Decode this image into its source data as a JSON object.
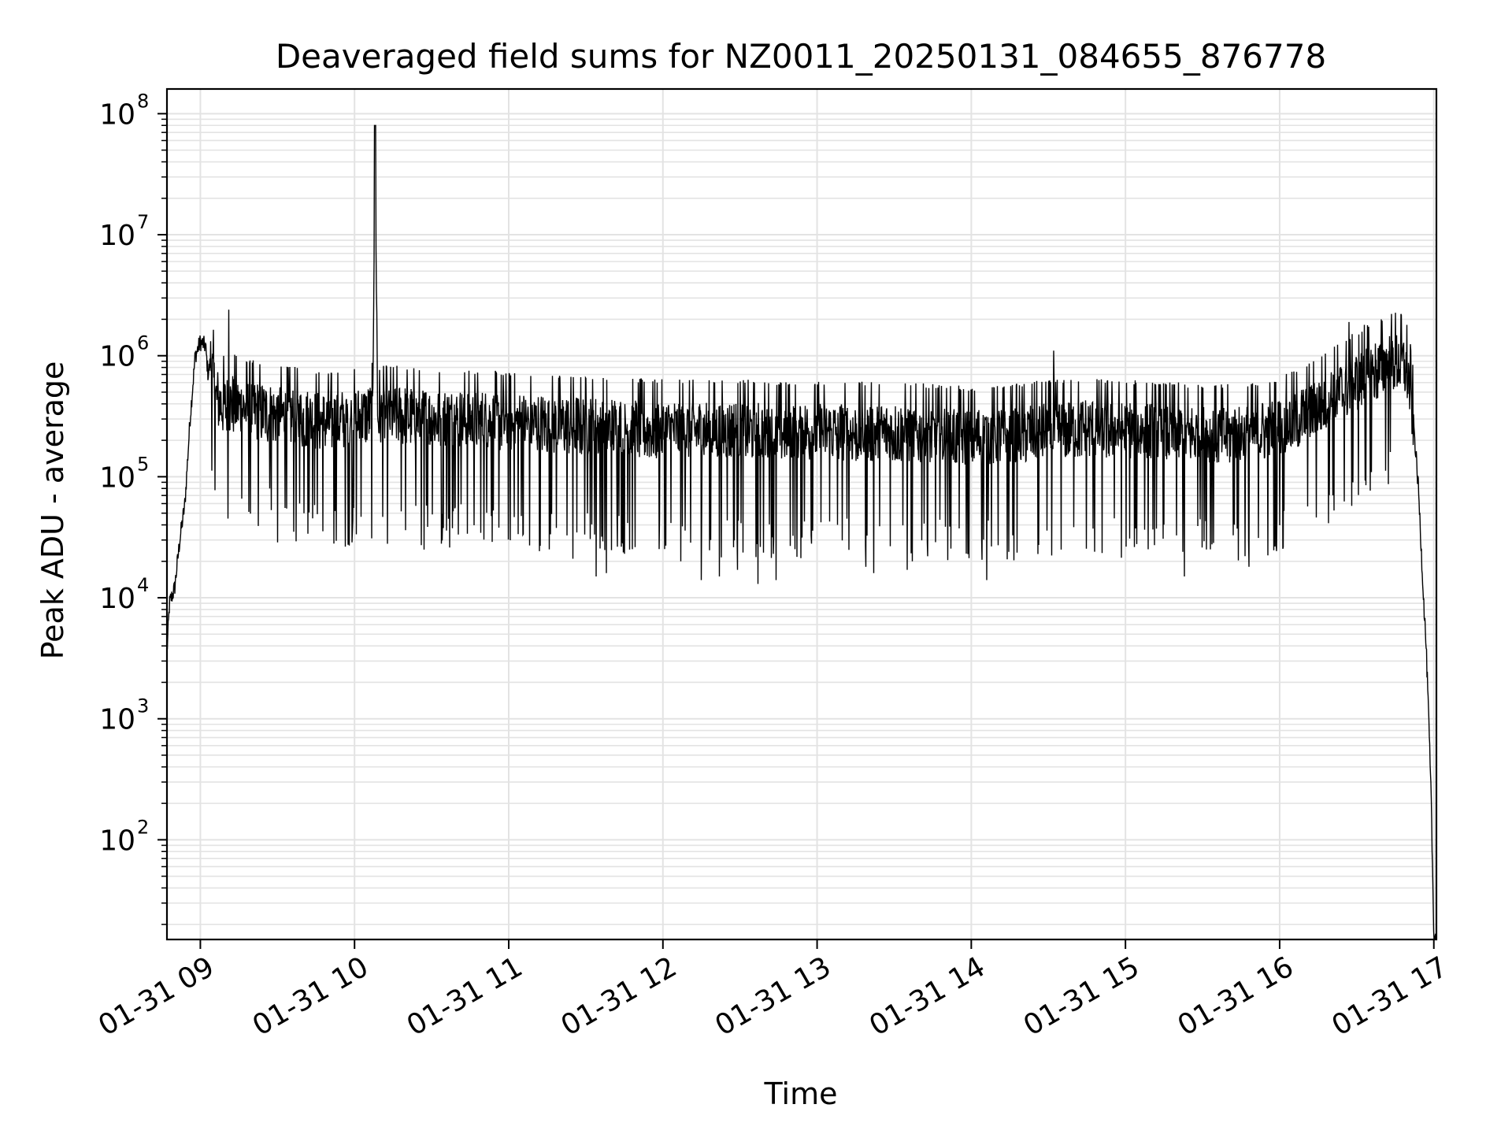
{
  "chart_data": {
    "type": "line",
    "title": "Deaveraged field sums for NZ0011_20250131_084655_876778",
    "xlabel": "Time",
    "ylabel": "Peak ADU - average",
    "yscale": "log",
    "grid": true,
    "legend": "none",
    "colors": {
      "line": "#000000",
      "grid": "#e3e3e3",
      "axes": "#000000",
      "background": "#ffffff"
    },
    "xlim": [
      "2025-01-31 08:47",
      "2025-01-31 17:01"
    ],
    "ylim": [
      15,
      160000000
    ],
    "x_ticks": [
      {
        "value": "2025-01-31 09:00",
        "label": "01-31 09"
      },
      {
        "value": "2025-01-31 10:00",
        "label": "01-31 10"
      },
      {
        "value": "2025-01-31 11:00",
        "label": "01-31 11"
      },
      {
        "value": "2025-01-31 12:00",
        "label": "01-31 12"
      },
      {
        "value": "2025-01-31 13:00",
        "label": "01-31 13"
      },
      {
        "value": "2025-01-31 14:00",
        "label": "01-31 14"
      },
      {
        "value": "2025-01-31 15:00",
        "label": "01-31 15"
      },
      {
        "value": "2025-01-31 16:00",
        "label": "01-31 16"
      },
      {
        "value": "2025-01-31 17:00",
        "label": "01-31 17"
      }
    ],
    "y_ticks": [
      {
        "value": 100,
        "base": "10",
        "exp": "2"
      },
      {
        "value": 1000,
        "base": "10",
        "exp": "3"
      },
      {
        "value": 10000,
        "base": "10",
        "exp": "4"
      },
      {
        "value": 100000,
        "base": "10",
        "exp": "5"
      },
      {
        "value": 1000000,
        "base": "10",
        "exp": "6"
      },
      {
        "value": 10000000,
        "base": "10",
        "exp": "7"
      },
      {
        "value": 100000000,
        "base": "10",
        "exp": "8"
      }
    ],
    "series": [
      {
        "x": [
          "2025-01-31 08:47",
          "2025-01-31 08:48",
          "2025-01-31 08:50",
          "2025-01-31 08:52",
          "2025-01-31 08:54",
          "2025-01-31 08:56",
          "2025-01-31 08:58",
          "2025-01-31 09:00",
          "2025-01-31 09:02",
          "2025-01-31 09:03",
          "2025-01-31 09:04",
          "2025-01-31 09:06",
          "2025-01-31 09:08",
          "2025-01-31 09:10",
          "2025-01-31 09:12",
          "2025-01-31 09:15",
          "2025-01-31 09:20",
          "2025-01-31 09:30",
          "2025-01-31 09:40",
          "2025-01-31 09:50",
          "2025-01-31 10:00",
          "2025-01-31 10:07",
          "2025-01-31 10:08",
          "2025-01-31 10:09",
          "2025-01-31 10:15",
          "2025-01-31 10:30",
          "2025-01-31 10:45",
          "2025-01-31 11:00",
          "2025-01-31 11:15",
          "2025-01-31 11:30",
          "2025-01-31 11:45",
          "2025-01-31 12:00",
          "2025-01-31 12:15",
          "2025-01-31 12:30",
          "2025-01-31 12:45",
          "2025-01-31 13:00",
          "2025-01-31 13:15",
          "2025-01-31 13:30",
          "2025-01-31 13:45",
          "2025-01-31 14:00",
          "2025-01-31 14:15",
          "2025-01-31 14:30",
          "2025-01-31 14:45",
          "2025-01-31 15:00",
          "2025-01-31 15:15",
          "2025-01-31 15:30",
          "2025-01-31 15:45",
          "2025-01-31 16:00",
          "2025-01-31 16:10",
          "2025-01-31 16:20",
          "2025-01-31 16:30",
          "2025-01-31 16:40",
          "2025-01-31 16:45",
          "2025-01-31 16:48",
          "2025-01-31 16:50",
          "2025-01-31 16:52",
          "2025-01-31 16:54",
          "2025-01-31 16:56",
          "2025-01-31 16:57",
          "2025-01-31 16:58",
          "2025-01-31 16:59",
          "2025-01-31 17:00"
        ],
        "y": [
          3500,
          9000,
          12000,
          30000,
          60000,
          300000,
          1000000,
          1300000,
          1200000,
          700000,
          900000,
          450000,
          400000,
          380000,
          400000,
          380000,
          350000,
          320000,
          300000,
          280000,
          300000,
          330000,
          80000000,
          310000,
          320000,
          300000,
          290000,
          280000,
          270000,
          260000,
          250000,
          240000,
          240000,
          240000,
          235000,
          235000,
          230000,
          230000,
          220000,
          210000,
          220000,
          240000,
          250000,
          240000,
          230000,
          220000,
          220000,
          250000,
          320000,
          450000,
          600000,
          800000,
          900000,
          850000,
          700000,
          300000,
          80000,
          10000,
          4000,
          1000,
          200,
          16
        ],
        "dips": {
          "x": [
            "2025-01-31 09:27",
            "2025-01-31 09:52",
            "2025-01-31 09:58",
            "2025-01-31 10:27",
            "2025-01-31 10:37",
            "2025-01-31 11:25",
            "2025-01-31 11:34",
            "2025-01-31 11:38",
            "2025-01-31 11:47",
            "2025-01-31 12:07",
            "2025-01-31 12:15",
            "2025-01-31 12:22",
            "2025-01-31 12:29",
            "2025-01-31 12:37",
            "2025-01-31 12:44",
            "2025-01-31 13:08",
            "2025-01-31 13:19",
            "2025-01-31 13:22",
            "2025-01-31 13:35",
            "2025-01-31 13:43",
            "2025-01-31 14:06",
            "2025-01-31 14:26",
            "2025-01-31 14:35",
            "2025-01-31 14:48",
            "2025-01-31 15:23",
            "2025-01-31 15:48"
          ],
          "y": [
            80000,
            28000,
            27000,
            25000,
            26000,
            21000,
            15000,
            16000,
            25000,
            20000,
            14000,
            15000,
            17000,
            13000,
            14000,
            40000,
            18000,
            16000,
            17000,
            22000,
            14000,
            23000,
            25000,
            24000,
            15000,
            18000
          ]
        },
        "spikes": {
          "x": [
            "2025-01-31 09:11",
            "2025-01-31 14:32",
            "2025-01-31 16:27",
            "2025-01-31 16:33"
          ],
          "y": [
            2400000,
            1100000,
            1900000,
            1800000
          ]
        }
      }
    ]
  }
}
